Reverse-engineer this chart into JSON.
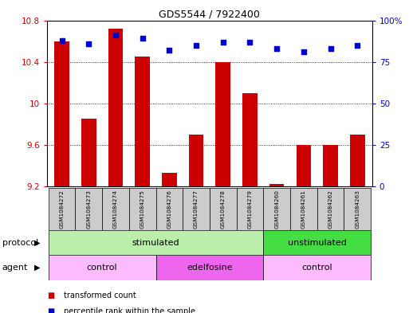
{
  "title": "GDS5544 / 7922400",
  "samples": [
    "GSM1084272",
    "GSM1084273",
    "GSM1084274",
    "GSM1084275",
    "GSM1084276",
    "GSM1084277",
    "GSM1084278",
    "GSM1084279",
    "GSM1084260",
    "GSM1084261",
    "GSM1084262",
    "GSM1084263"
  ],
  "bar_values": [
    10.6,
    9.85,
    10.72,
    10.45,
    9.33,
    9.7,
    10.4,
    10.1,
    9.22,
    9.6,
    9.6,
    9.7
  ],
  "scatter_values": [
    88,
    86,
    91,
    89,
    82,
    85,
    87,
    87,
    83,
    81,
    83,
    85
  ],
  "bar_color": "#cc0000",
  "scatter_color": "#0000cc",
  "ylim_left": [
    9.2,
    10.8
  ],
  "ylim_right": [
    0,
    100
  ],
  "yticks_left": [
    9.2,
    9.6,
    10.0,
    10.4,
    10.8
  ],
  "ytick_labels_left": [
    "9.2",
    "9.6",
    "10",
    "10.4",
    "10.8"
  ],
  "yticks_right": [
    0,
    25,
    50,
    75,
    100
  ],
  "ytick_labels_right": [
    "0",
    "25",
    "50",
    "75",
    "100%"
  ],
  "protocol_groups": [
    {
      "label": "stimulated",
      "start": 0,
      "end": 8,
      "color": "#bbeeaa"
    },
    {
      "label": "unstimulated",
      "start": 8,
      "end": 12,
      "color": "#44dd44"
    }
  ],
  "agent_groups": [
    {
      "label": "control",
      "start": 0,
      "end": 4,
      "color": "#ffbbff"
    },
    {
      "label": "edelfosine",
      "start": 4,
      "end": 8,
      "color": "#ee66ee"
    },
    {
      "label": "control",
      "start": 8,
      "end": 12,
      "color": "#ffbbff"
    }
  ],
  "legend_bar_label": "transformed count",
  "legend_scatter_label": "percentile rank within the sample",
  "protocol_label": "protocol",
  "agent_label": "agent",
  "bar_bottom": 9.2,
  "sample_box_color": "#cccccc",
  "fig_width": 5.13,
  "fig_height": 3.93,
  "dpi": 100
}
